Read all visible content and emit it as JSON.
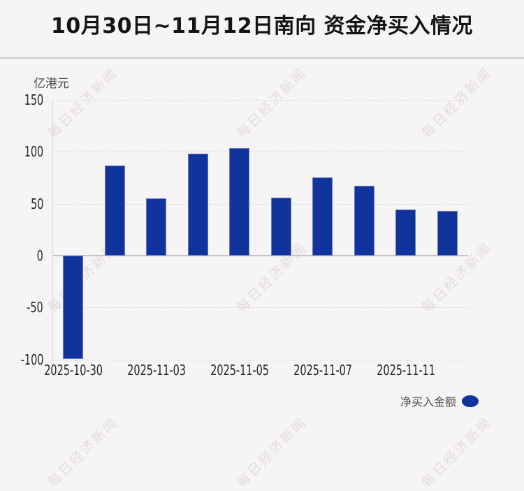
{
  "page": {
    "background_color": "#f7f4f5"
  },
  "watermark": {
    "text": "每日经济新闻"
  },
  "chart_data": {
    "type": "bar",
    "title": "10月30日~11月12日南向 资金净买入情况",
    "unit_label": "亿港元",
    "ylim": [
      -100,
      150
    ],
    "y_ticks": [
      150,
      100,
      50,
      0,
      -50,
      -100
    ],
    "grid": "horizontal dashed, solid zero line, left axis line only",
    "bar_color": "#11339c",
    "bars": [
      {
        "x_label": "2025-10-30",
        "value": -100
      },
      {
        "x_label": "",
        "value": 87
      },
      {
        "x_label": "2025-11-03",
        "value": 55
      },
      {
        "x_label": "",
        "value": 98
      },
      {
        "x_label": "2025-11-05",
        "value": 103.5
      },
      {
        "x_label": "",
        "value": 55.5
      },
      {
        "x_label": "2025-11-07",
        "value": 75.5
      },
      {
        "x_label": "",
        "value": 67
      },
      {
        "x_label": "2025-11-11",
        "value": 44.5
      },
      {
        "x_label": "",
        "value": 43
      }
    ],
    "legend": {
      "label": "净买入金额",
      "marker_color": "#11339c",
      "position": "bottom-right"
    }
  }
}
